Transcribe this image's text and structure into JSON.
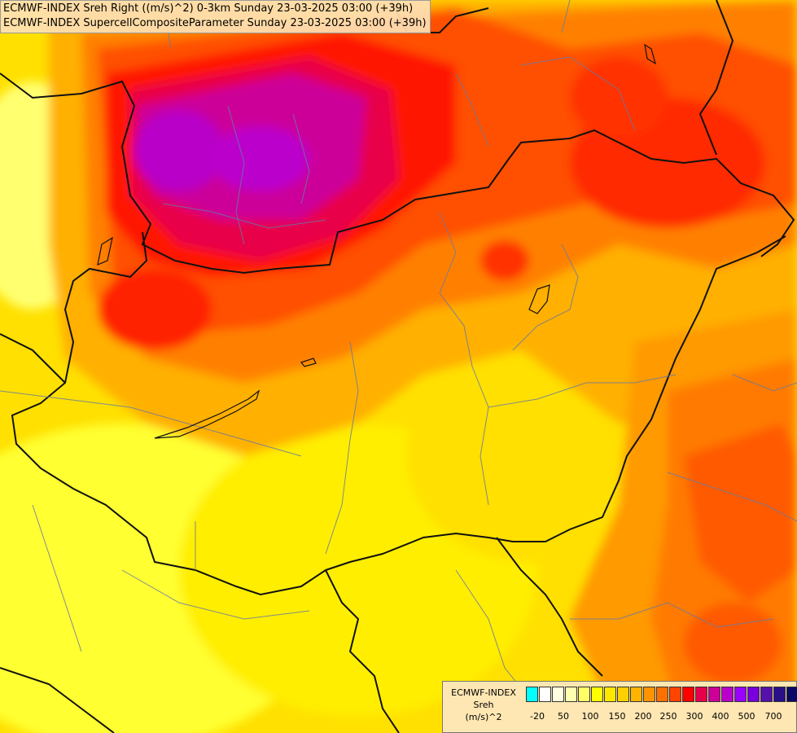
{
  "header": {
    "line1": "ECMWF-INDEX Sreh Right ((m/s)^2) 0-3km Sunday 23-03-2025 03:00 (+39h)",
    "line2": "ECMWF-INDEX SupercellCompositeParameter Sunday 23-03-2025 03:00 (+39h)"
  },
  "legend": {
    "title1": "ECMWF-INDEX",
    "title2": "Sreh",
    "title3": "(m/s)^2",
    "colors": [
      "#00ffff",
      "#ffffff",
      "#ffffe0",
      "#ffffb0",
      "#ffff66",
      "#ffff00",
      "#ffe800",
      "#ffd000",
      "#ffb400",
      "#ff9400",
      "#ff7000",
      "#ff4400",
      "#ff0000",
      "#e6004c",
      "#cc0099",
      "#bb00cc",
      "#9900ff",
      "#7700dd",
      "#5511aa",
      "#2a0f88",
      "#0a0a66"
    ],
    "ticks": [
      "-20",
      "50",
      "100",
      "150",
      "200",
      "250",
      "300",
      "400",
      "500",
      "700"
    ]
  },
  "map": {
    "field_colors": {
      "yellow": "#ffff00",
      "light_yellow": "#ffff80",
      "gold": "#ffd000",
      "orange": "#ffa500",
      "dark_orange": "#ff7a00",
      "red_orange": "#ff4400",
      "red": "#ff0000",
      "crimson": "#e6004c",
      "magenta": "#cc0099",
      "violet": "#bb00cc"
    }
  }
}
